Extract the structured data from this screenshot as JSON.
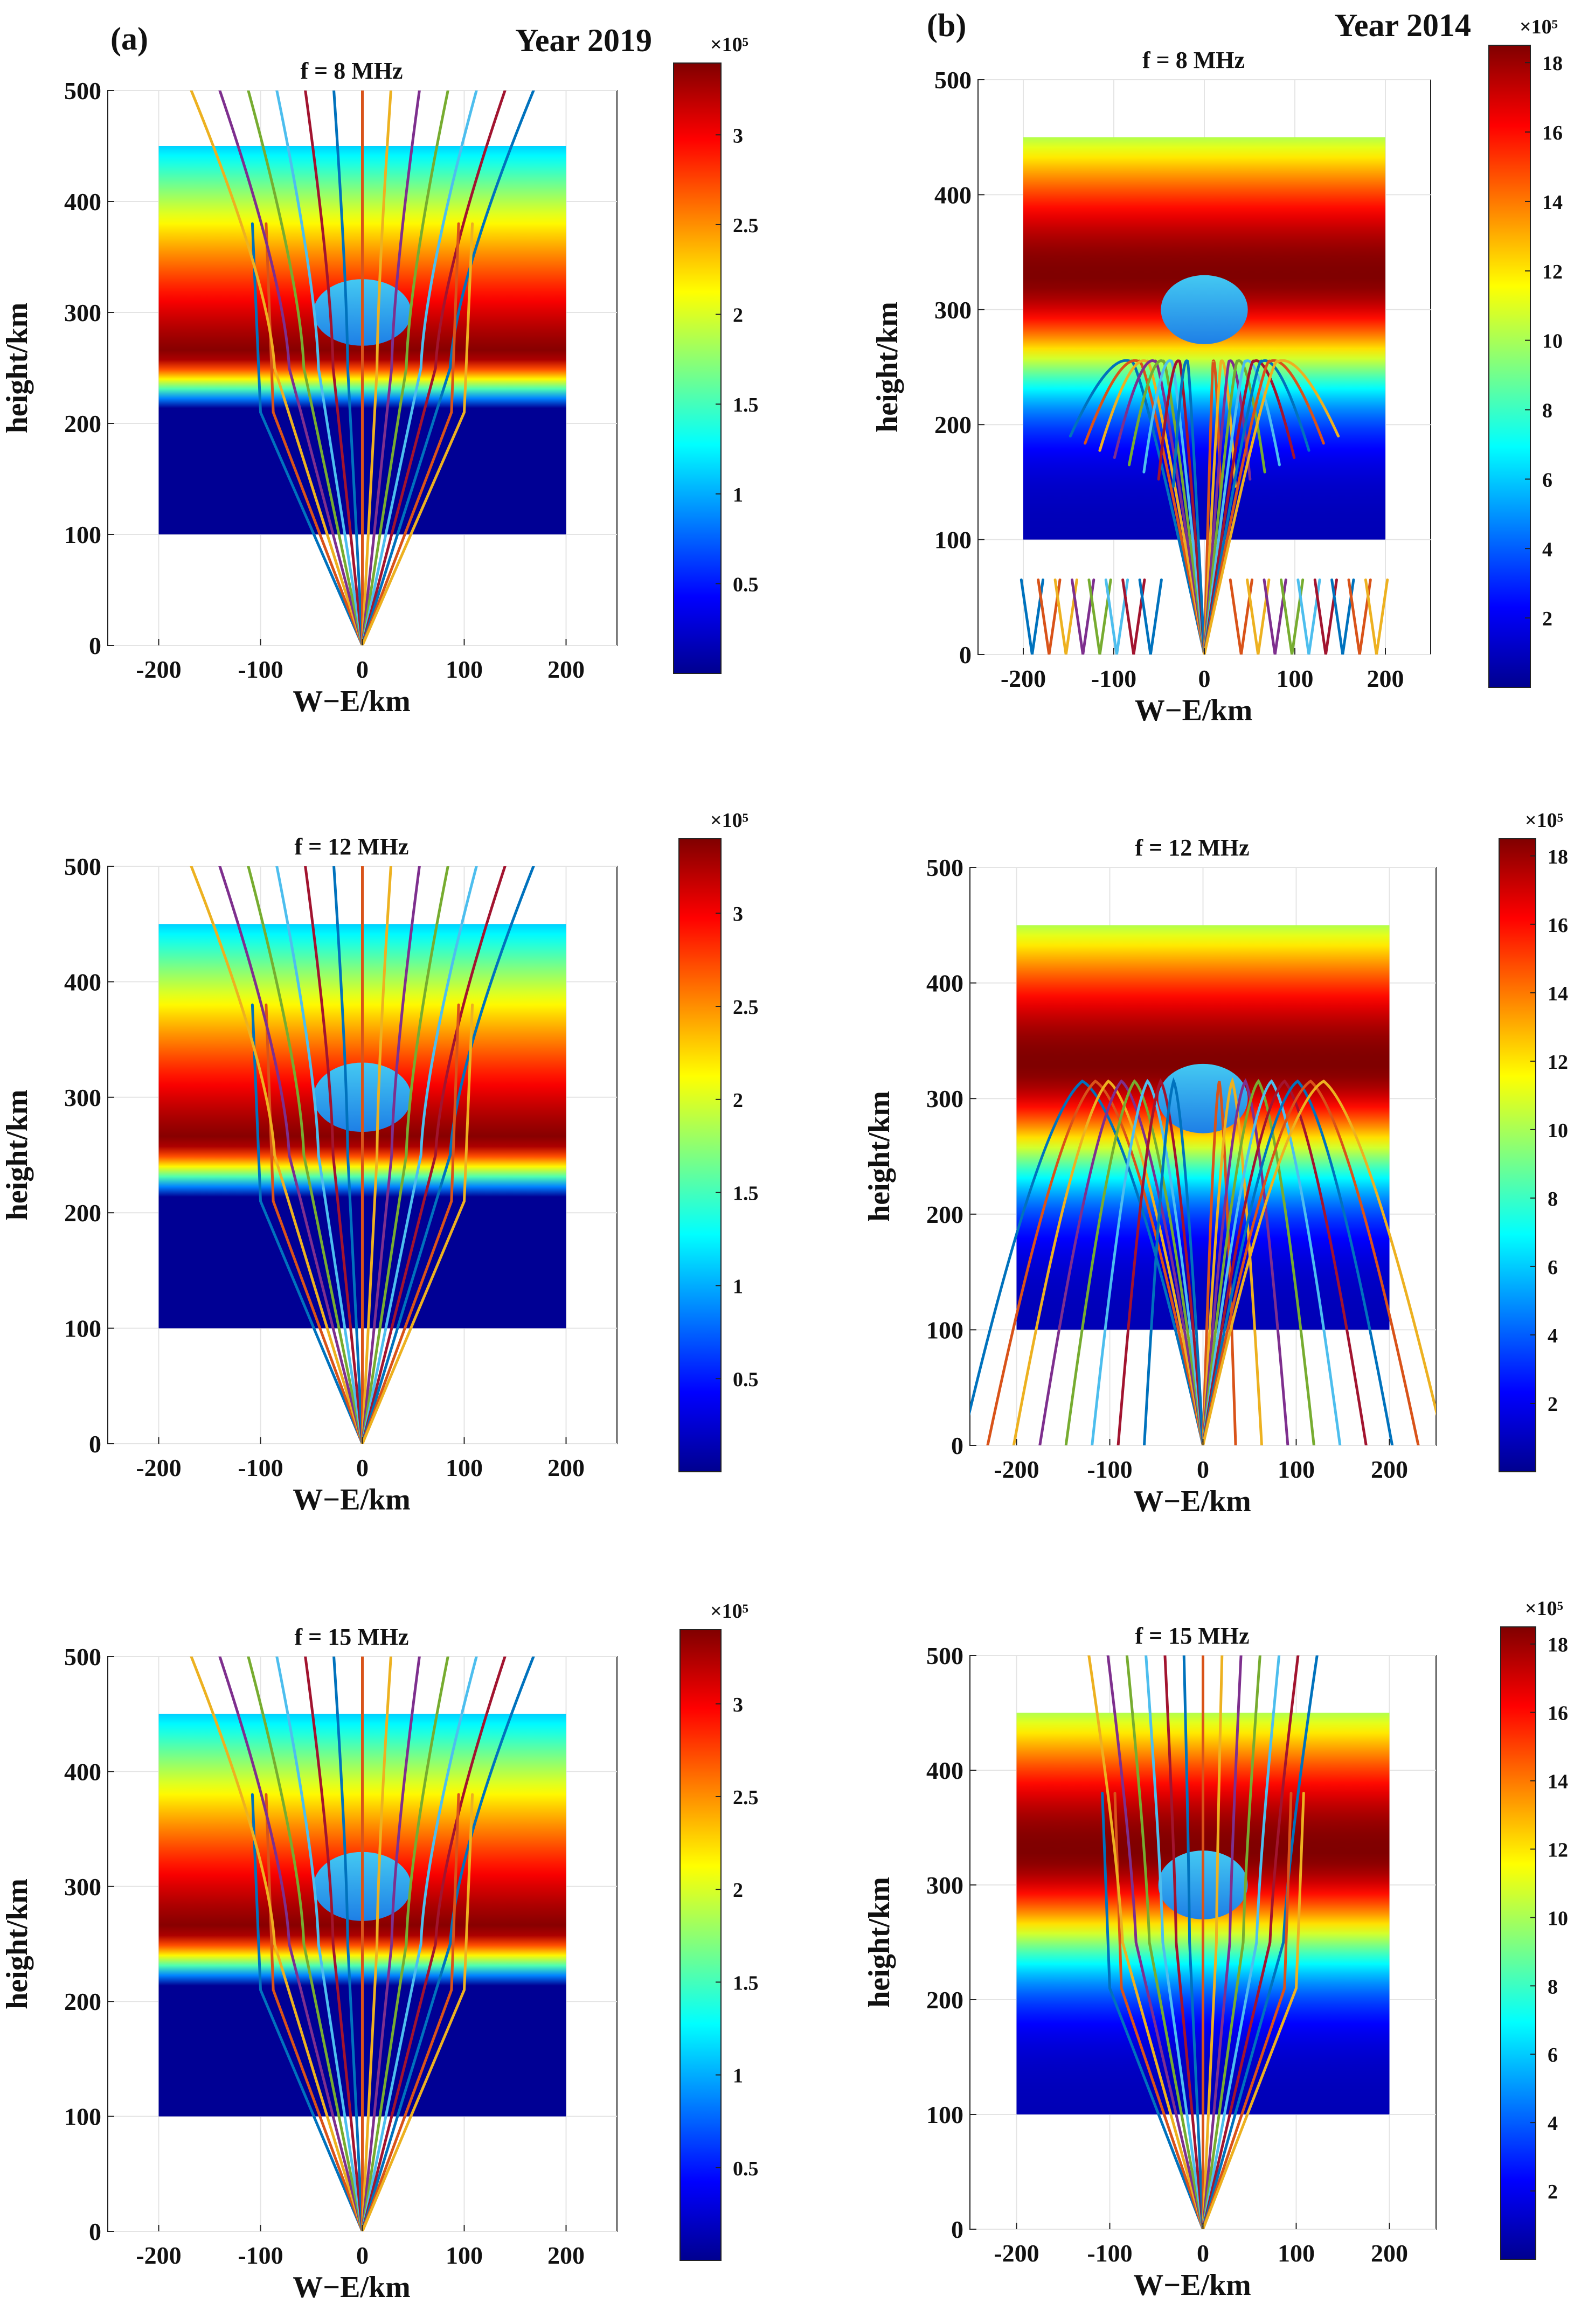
{
  "figure": {
    "panel_labels": [
      "(a)",
      "(b)"
    ],
    "year_labels": [
      "Year 2019",
      "Year 2014"
    ]
  },
  "chart_data": [
    {
      "type": "heatmap",
      "panel": "a",
      "row": 0,
      "title": "f = 8 MHz",
      "xlabel": "W−E/km",
      "ylabel": "height/km",
      "xlim": [
        -250,
        250
      ],
      "ylim": [
        0,
        500
      ],
      "xticks": [
        "-200",
        "-100",
        "0",
        "100",
        "200"
      ],
      "yticks": [
        "0",
        "100",
        "200",
        "300",
        "400",
        "500"
      ],
      "colorbar": {
        "clim": [
          0,
          3.4
        ],
        "ticks": [
          "0.5",
          "1",
          "1.5",
          "2",
          "2.5",
          "3"
        ],
        "tick_values": [
          0.5,
          1,
          1.5,
          2,
          2.5,
          3
        ],
        "multiplier": "×10⁵"
      },
      "ionosphere": {
        "x_range": [
          -200,
          200
        ],
        "h_range": [
          100,
          450
        ],
        "peak_h": 265,
        "bubble": {
          "center": [
            0,
            300
          ],
          "rx": 48,
          "ry": 30
        }
      },
      "rays": "straight"
    },
    {
      "type": "heatmap",
      "panel": "b",
      "row": 0,
      "title": "f = 8 MHz",
      "xlabel": "W−E/km",
      "ylabel": "height/km",
      "xlim": [
        -250,
        250
      ],
      "ylim": [
        0,
        500
      ],
      "xticks": [
        "-200",
        "-100",
        "0",
        "100",
        "200"
      ],
      "yticks": [
        "0",
        "100",
        "200",
        "300",
        "400",
        "500"
      ],
      "colorbar": {
        "clim": [
          0,
          18.5
        ],
        "ticks": [
          "2",
          "4",
          "6",
          "8",
          "10",
          "12",
          "14",
          "16",
          "18"
        ],
        "tick_values": [
          2,
          4,
          6,
          8,
          10,
          12,
          14,
          16,
          18
        ],
        "multiplier": "×10⁵"
      },
      "ionosphere": {
        "x_range": [
          -200,
          200
        ],
        "h_range": [
          100,
          450
        ],
        "peak_h": 330,
        "bubble": {
          "center": [
            0,
            300
          ],
          "rx": 48,
          "ry": 30
        }
      },
      "rays": "reflect_low",
      "reflection_height": 255
    },
    {
      "type": "heatmap",
      "panel": "a",
      "row": 1,
      "title": "f = 12 MHz",
      "xlabel": "W−E/km",
      "ylabel": "height/km",
      "xlim": [
        -250,
        250
      ],
      "ylim": [
        0,
        500
      ],
      "xticks": [
        "-200",
        "-100",
        "0",
        "100",
        "200"
      ],
      "yticks": [
        "0",
        "100",
        "200",
        "300",
        "400",
        "500"
      ],
      "colorbar": {
        "clim": [
          0,
          3.4
        ],
        "ticks": [
          "0.5",
          "1",
          "1.5",
          "2",
          "2.5",
          "3"
        ],
        "tick_values": [
          0.5,
          1,
          1.5,
          2,
          2.5,
          3
        ],
        "multiplier": "×10⁵"
      },
      "ionosphere": {
        "x_range": [
          -200,
          200
        ],
        "h_range": [
          100,
          450
        ],
        "peak_h": 265,
        "bubble": {
          "center": [
            0,
            300
          ],
          "rx": 48,
          "ry": 30
        }
      },
      "rays": "straight"
    },
    {
      "type": "heatmap",
      "panel": "b",
      "row": 1,
      "title": "f = 12 MHz",
      "xlabel": "W−E/km",
      "ylabel": "height/km",
      "xlim": [
        -250,
        250
      ],
      "ylim": [
        0,
        500
      ],
      "xticks": [
        "-200",
        "-100",
        "0",
        "100",
        "200"
      ],
      "yticks": [
        "0",
        "100",
        "200",
        "300",
        "400",
        "500"
      ],
      "colorbar": {
        "clim": [
          0,
          18.5
        ],
        "ticks": [
          "2",
          "4",
          "6",
          "8",
          "10",
          "12",
          "14",
          "16",
          "18"
        ],
        "tick_values": [
          2,
          4,
          6,
          8,
          10,
          12,
          14,
          16,
          18
        ],
        "multiplier": "×10⁵"
      },
      "ionosphere": {
        "x_range": [
          -200,
          200
        ],
        "h_range": [
          100,
          450
        ],
        "peak_h": 330,
        "bubble": {
          "center": [
            0,
            300
          ],
          "rx": 48,
          "ry": 30
        }
      },
      "rays": "reflect_high",
      "reflection_height": 315
    },
    {
      "type": "heatmap",
      "panel": "a",
      "row": 2,
      "title": "f = 15 MHz",
      "xlabel": "W−E/km",
      "ylabel": "height/km",
      "xlim": [
        -250,
        250
      ],
      "ylim": [
        0,
        500
      ],
      "xticks": [
        "-200",
        "-100",
        "0",
        "100",
        "200"
      ],
      "yticks": [
        "0",
        "100",
        "200",
        "300",
        "400",
        "500"
      ],
      "colorbar": {
        "clim": [
          0,
          3.4
        ],
        "ticks": [
          "0.5",
          "1",
          "1.5",
          "2",
          "2.5",
          "3"
        ],
        "tick_values": [
          0.5,
          1,
          1.5,
          2,
          2.5,
          3
        ],
        "multiplier": "×10⁵"
      },
      "ionosphere": {
        "x_range": [
          -200,
          200
        ],
        "h_range": [
          100,
          450
        ],
        "peak_h": 265,
        "bubble": {
          "center": [
            0,
            300
          ],
          "rx": 48,
          "ry": 30
        }
      },
      "rays": "straight"
    },
    {
      "type": "heatmap",
      "panel": "b",
      "row": 2,
      "title": "f = 15 MHz",
      "xlabel": "W−E/km",
      "ylabel": "height/km",
      "xlim": [
        -250,
        250
      ],
      "ylim": [
        0,
        500
      ],
      "xticks": [
        "-200",
        "-100",
        "0",
        "100",
        "200"
      ],
      "yticks": [
        "0",
        "100",
        "200",
        "300",
        "400",
        "500"
      ],
      "colorbar": {
        "clim": [
          0,
          18.5
        ],
        "ticks": [
          "2",
          "4",
          "6",
          "8",
          "10",
          "12",
          "14",
          "16",
          "18"
        ],
        "tick_values": [
          2,
          4,
          6,
          8,
          10,
          12,
          14,
          16,
          18
        ],
        "multiplier": "×10⁵"
      },
      "ionosphere": {
        "x_range": [
          -200,
          200
        ],
        "h_range": [
          100,
          450
        ],
        "peak_h": 330,
        "bubble": {
          "center": [
            0,
            300
          ],
          "rx": 48,
          "ry": 30
        }
      },
      "rays": "straight_bend"
    }
  ]
}
